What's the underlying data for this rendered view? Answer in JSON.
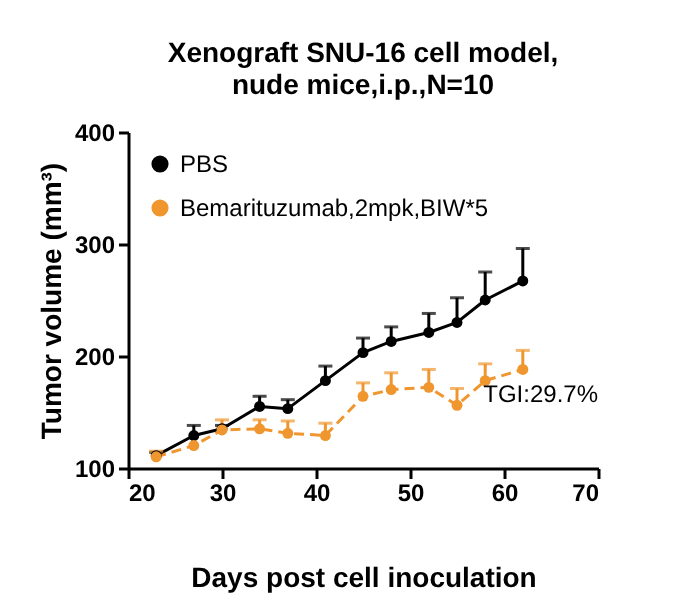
{
  "chart_data": {
    "type": "line",
    "title": "Xenograft SNU-16 cell model,\nnude mice,i.p.,N=10",
    "xlabel": "Days post cell inoculation",
    "ylabel": "Tumor volume (mm³)",
    "x": [
      23,
      27,
      30,
      34,
      37,
      41,
      45,
      48,
      52,
      55,
      58,
      62
    ],
    "series": [
      {
        "name": "PBS",
        "color": "#000000",
        "line_style": "solid",
        "values": [
          111,
          129,
          135,
          155,
          153,
          178,
          203,
          213,
          221,
          230,
          250,
          267
        ],
        "errors": [
          [
            111,
            114
          ],
          [
            129,
            138
          ],
          [
            135,
            138
          ],
          [
            155,
            164
          ],
          [
            153,
            161
          ],
          [
            178,
            191
          ],
          [
            203,
            216
          ],
          [
            213,
            226
          ],
          [
            221,
            238
          ],
          [
            230,
            252
          ],
          [
            250,
            275
          ],
          [
            267,
            296
          ]
        ]
      },
      {
        "name": "Bemarituzumab,2mpk,BIW*5",
        "color": "#f0962e",
        "line_style": "dashed",
        "values": [
          110,
          120,
          134,
          135,
          131,
          129,
          164,
          170,
          172,
          156,
          178,
          188
        ],
        "errors": [
          [
            110,
            115
          ],
          null,
          [
            134,
            143
          ],
          [
            135,
            143
          ],
          [
            131,
            142
          ],
          [
            129,
            140
          ],
          [
            164,
            176
          ],
          [
            170,
            185
          ],
          [
            172,
            188
          ],
          [
            156,
            171
          ],
          [
            178,
            193
          ],
          [
            188,
            205
          ]
        ]
      }
    ],
    "xlim": [
      20,
      70
    ],
    "xticks": [
      20,
      30,
      40,
      50,
      60,
      70
    ],
    "ylim": [
      100,
      400
    ],
    "yticks": [
      100,
      200,
      300,
      400
    ],
    "grid": false,
    "legend": "top left",
    "marker": "circle",
    "annotations": [
      "TGI:29.7%"
    ]
  }
}
